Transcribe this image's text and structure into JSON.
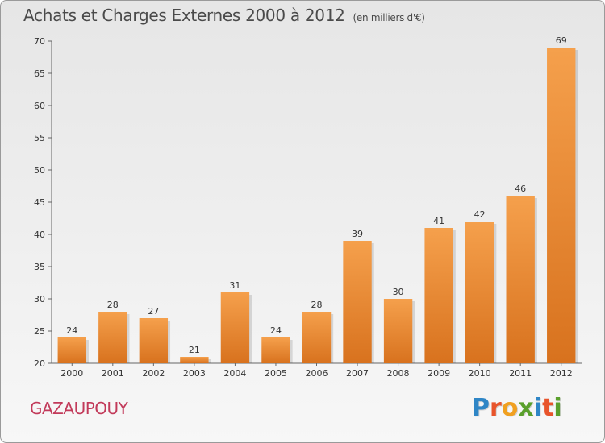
{
  "header": {
    "title": "Achats et Charges Externes 2000 à 2012",
    "unit": "(en milliers d'€)"
  },
  "footer": {
    "commune": "GAZAUPOUY",
    "logo_text": "Proxiti",
    "logo_colors": [
      "#2f86c6",
      "#e8542b",
      "#f0a020",
      "#5aa02c",
      "#2f86c6",
      "#e8542b",
      "#5aa02c"
    ]
  },
  "chart_data": {
    "type": "bar",
    "title": "Achats et Charges Externes 2000 à 2012",
    "xlabel": "",
    "ylabel": "",
    "categories": [
      "2000",
      "2001",
      "2002",
      "2003",
      "2004",
      "2005",
      "2006",
      "2007",
      "2008",
      "2009",
      "2010",
      "2011",
      "2012"
    ],
    "values": [
      24,
      28,
      27,
      21,
      31,
      24,
      28,
      39,
      30,
      41,
      42,
      46,
      69
    ],
    "ylim": [
      20,
      70
    ],
    "yticks": [
      20,
      25,
      30,
      35,
      40,
      45,
      50,
      55,
      60,
      65,
      70
    ],
    "grid": false,
    "bar_color_top": "#f5a04c",
    "bar_color_bottom": "#d8721e"
  }
}
